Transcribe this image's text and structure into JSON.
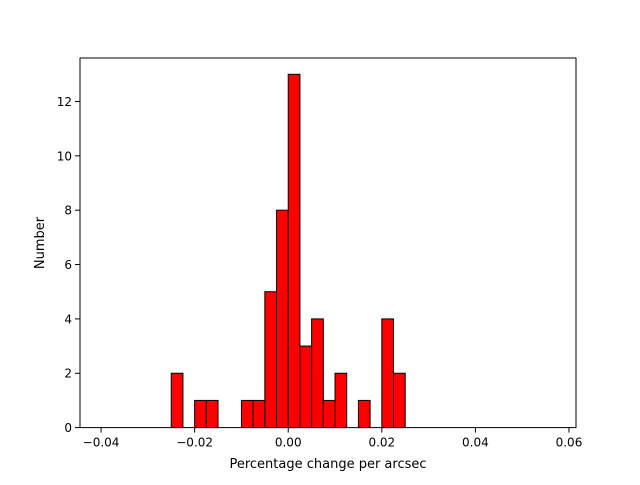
{
  "chart_data": {
    "type": "bar",
    "title": "",
    "xlabel": "Percentage change per arcsec",
    "ylabel": "Number",
    "xlim": [
      -0.0445,
      0.0615
    ],
    "ylim": [
      0,
      13.6
    ],
    "grid": false,
    "bin_width": 0.0025,
    "bar_color": "#ff0000",
    "edge_color": "#000000",
    "xticks": [
      -0.04,
      -0.02,
      0.0,
      0.02,
      0.04,
      0.06
    ],
    "xtick_labels": [
      "−0.04",
      "−0.02",
      "0.00",
      "0.02",
      "0.04",
      "0.06"
    ],
    "yticks": [
      0,
      2,
      4,
      6,
      8,
      10,
      12
    ],
    "ytick_labels": [
      "0",
      "2",
      "4",
      "6",
      "8",
      "10",
      "12"
    ],
    "bins": [
      {
        "left": -0.04,
        "count": 0
      },
      {
        "left": -0.0375,
        "count": 0
      },
      {
        "left": -0.035,
        "count": 0
      },
      {
        "left": -0.0325,
        "count": 0
      },
      {
        "left": -0.03,
        "count": 0
      },
      {
        "left": -0.0275,
        "count": 0
      },
      {
        "left": -0.025,
        "count": 2
      },
      {
        "left": -0.0225,
        "count": 0
      },
      {
        "left": -0.02,
        "count": 1
      },
      {
        "left": -0.0175,
        "count": 1
      },
      {
        "left": -0.015,
        "count": 0
      },
      {
        "left": -0.0125,
        "count": 0
      },
      {
        "left": -0.01,
        "count": 1
      },
      {
        "left": -0.0075,
        "count": 1
      },
      {
        "left": -0.005,
        "count": 5
      },
      {
        "left": -0.0025,
        "count": 8
      },
      {
        "left": 0.0,
        "count": 13
      },
      {
        "left": 0.0025,
        "count": 3
      },
      {
        "left": 0.005,
        "count": 4
      },
      {
        "left": 0.0075,
        "count": 1
      },
      {
        "left": 0.01,
        "count": 2
      },
      {
        "left": 0.0125,
        "count": 0
      },
      {
        "left": 0.015,
        "count": 1
      },
      {
        "left": 0.0175,
        "count": 0
      },
      {
        "left": 0.02,
        "count": 4
      },
      {
        "left": 0.0225,
        "count": 2
      },
      {
        "left": 0.025,
        "count": 0
      },
      {
        "left": 0.0275,
        "count": 0
      },
      {
        "left": 0.03,
        "count": 0
      },
      {
        "left": 0.0325,
        "count": 0
      },
      {
        "left": 0.035,
        "count": 0
      },
      {
        "left": 0.0375,
        "count": 0
      },
      {
        "left": 0.04,
        "count": 0
      },
      {
        "left": 0.0425,
        "count": 0
      },
      {
        "left": 0.045,
        "count": 0
      },
      {
        "left": 0.0475,
        "count": 0
      },
      {
        "left": 0.05,
        "count": 0
      },
      {
        "left": 0.0525,
        "count": 0
      },
      {
        "left": 0.055,
        "count": 0
      }
    ]
  }
}
